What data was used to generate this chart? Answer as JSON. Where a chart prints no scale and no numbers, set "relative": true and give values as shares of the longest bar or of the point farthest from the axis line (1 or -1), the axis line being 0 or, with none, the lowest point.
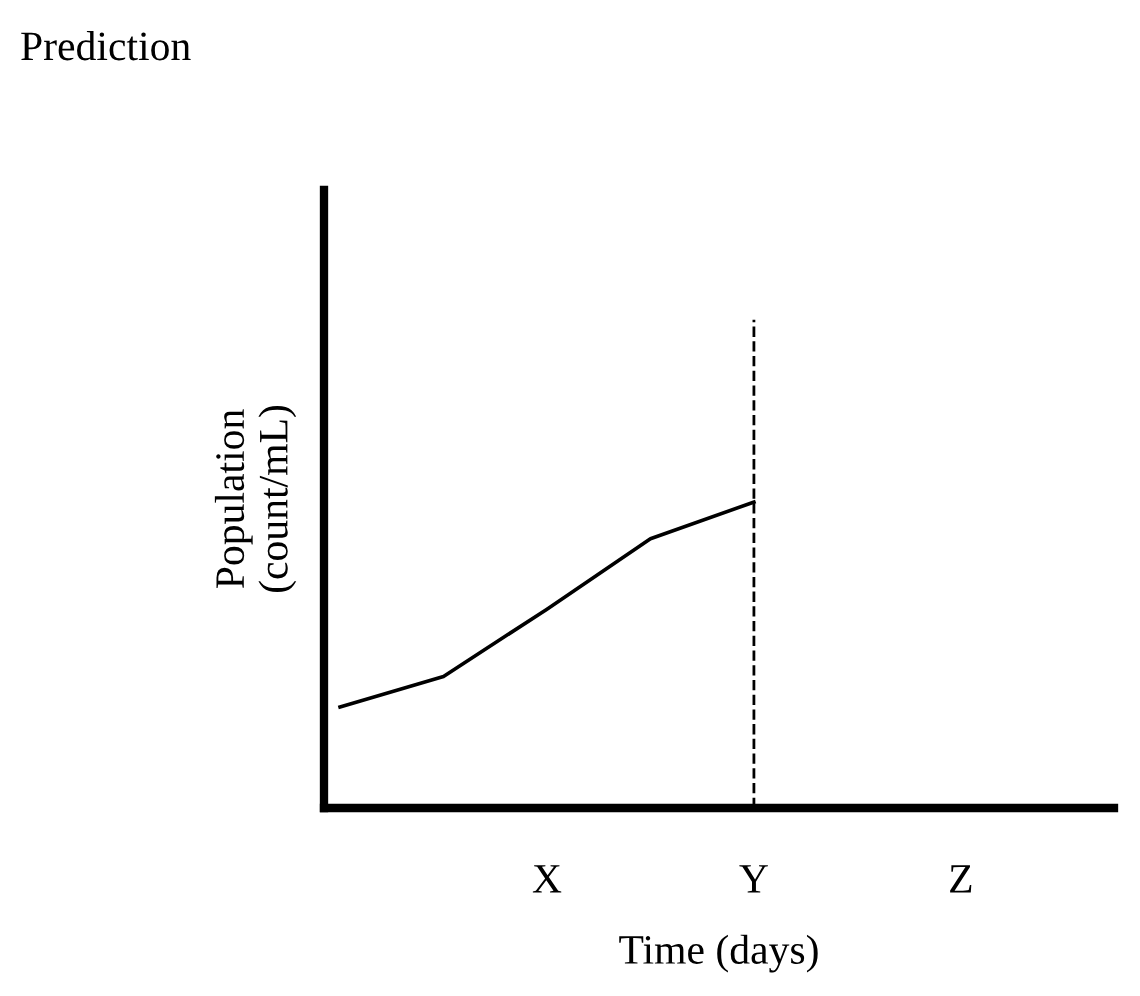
{
  "chart_data": {
    "type": "line",
    "title": "Prediction",
    "xlabel": "Time (days)",
    "ylabel": "Population\n(count/mL)",
    "categories": [
      null,
      null,
      "X",
      null,
      "Y",
      null,
      "Z",
      null
    ],
    "relative": true,
    "series": [
      {
        "color": "#000000",
        "values": [
          0.33,
          0.43,
          0.65,
          0.88,
          1.0,
          null,
          null,
          null
        ]
      }
    ],
    "ref_lines": [
      {
        "axis": "x",
        "value": "Y",
        "color": "#000000",
        "line_style": "dashed"
      }
    ],
    "grid": false,
    "legend": false,
    "marker": "none",
    "line_style": "solid"
  }
}
